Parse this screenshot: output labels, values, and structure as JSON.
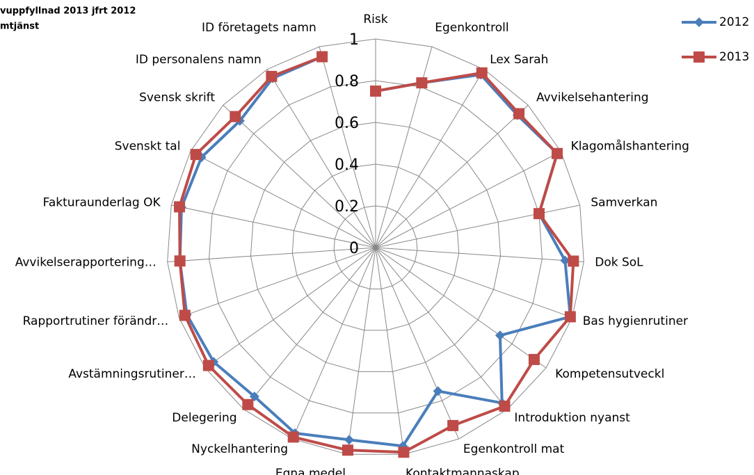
{
  "chart_data": {
    "type": "radar",
    "title_lines": [
      "vuppfyllnad 2013 jfrt 2012",
      "mtjänst"
    ],
    "categories": [
      "Risk",
      "Egenkontroll",
      "Lex Sarah",
      "Avvikelsehantering",
      "Klagomålshantering",
      "Samverkan",
      "Dok SoL",
      "Bas hygienrutiner",
      "Kompetensutveckl",
      "Introduktion nyanst",
      "Egenkontroll mat",
      "Kontaktmannaskap",
      "Egna medel",
      "Nyckelhantering",
      "Delegering",
      "Avstämningsrutiner…",
      "Rapportrutiner förändr…",
      "Avvikelserapportering…",
      "Fakturaunderlag OK",
      "Svenskt tal",
      "Svensk skrift",
      "ID personalens namn",
      "ID företagets namn"
    ],
    "series": [
      {
        "name": "2012",
        "color": "#4a7ebb",
        "marker": "diamond",
        "values": [
          0.75,
          0.82,
          0.97,
          0.93,
          0.98,
          0.8,
          0.91,
          0.99,
          0.73,
          0.96,
          0.75,
          0.96,
          0.93,
          0.97,
          0.92,
          0.95,
          0.96,
          0.94,
          0.95,
          0.94,
          0.89,
          0.95,
          0.95
        ]
      },
      {
        "name": "2013",
        "color": "#be4b48",
        "marker": "square",
        "values": [
          0.75,
          0.82,
          0.98,
          0.94,
          0.98,
          0.8,
          0.95,
          0.99,
          0.93,
          0.98,
          0.93,
          0.99,
          0.98,
          0.99,
          0.97,
          0.98,
          0.97,
          0.94,
          0.96,
          0.97,
          0.92,
          0.96,
          0.95
        ]
      }
    ],
    "ylim": [
      0,
      1
    ],
    "yticks": [
      0,
      0.2,
      0.4,
      0.6,
      0.8,
      1
    ],
    "grid": true,
    "legend": "top-right"
  }
}
